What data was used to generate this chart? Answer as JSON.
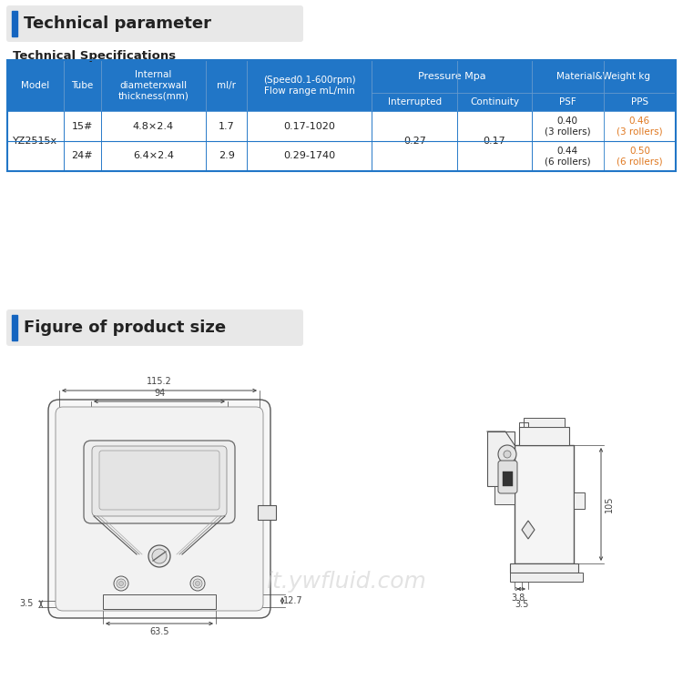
{
  "bg_color": "#ffffff",
  "title1": "Technical parameter",
  "title1_bar_color": "#1565c0",
  "title1_bg_color": "#e8e8e8",
  "subtitle": "Technical Specifications",
  "title2": "Figure of product size",
  "title2_bar_color": "#1565c0",
  "title2_bg_color": "#e8e8e8",
  "header_bg": "#2176c7",
  "header_text_color": "#ffffff",
  "table_border_color": "#2176c7",
  "cell_bg": "#ffffff",
  "orange_text": "#e07820",
  "watermark": "it.ywfluid.com",
  "line_color": "#555555",
  "dim_color": "#666666"
}
